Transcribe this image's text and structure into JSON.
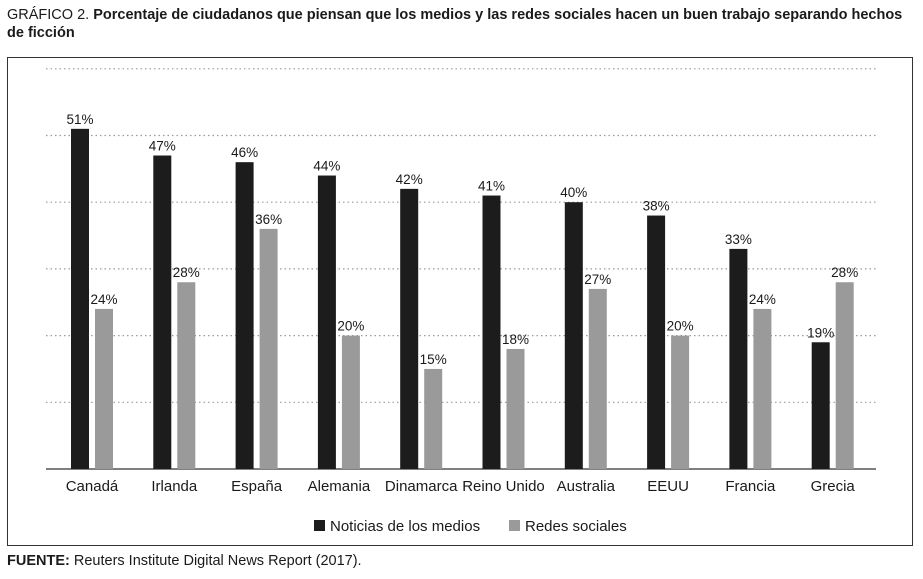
{
  "title": {
    "lead": "GRÁFICO 2.",
    "text": "Porcentaje de ciudadanos que piensan que los medios y las redes sociales hacen un buen trabajo separando hechos de ficción"
  },
  "source": {
    "label": "FUENTE:",
    "text": "Reuters Institute Digital News Report (2017)."
  },
  "colors": {
    "series_news": "#1c1c1c",
    "series_social": "#9a9a9a",
    "grid": "#9a9a9a",
    "axis": "#555555"
  },
  "chart_data": {
    "type": "bar",
    "categories": [
      "Canadá",
      "Irlanda",
      "España",
      "Alemania",
      "Dinamarca",
      "Reino Unido",
      "Australia",
      "EEUU",
      "Francia",
      "Grecia"
    ],
    "series": [
      {
        "name": "Noticias de los medios",
        "values": [
          51,
          47,
          46,
          44,
          42,
          41,
          40,
          38,
          33,
          19
        ],
        "labels": [
          "51%",
          "47%",
          "46%",
          "44%",
          "42%",
          "41%",
          "40%",
          "38%",
          "33%",
          "19%"
        ]
      },
      {
        "name": "Redes sociales",
        "values": [
          24,
          28,
          36,
          20,
          15,
          18,
          27,
          20,
          24,
          28
        ],
        "labels": [
          "24%",
          "28%",
          "36%",
          "20%",
          "15%",
          "18%",
          "27%",
          "20%",
          "24%",
          "28%"
        ]
      }
    ],
    "ylim": [
      0,
      60
    ],
    "yticks": [
      0,
      10,
      20,
      30,
      40,
      50,
      60
    ],
    "grid": true,
    "legend": "bottom"
  }
}
